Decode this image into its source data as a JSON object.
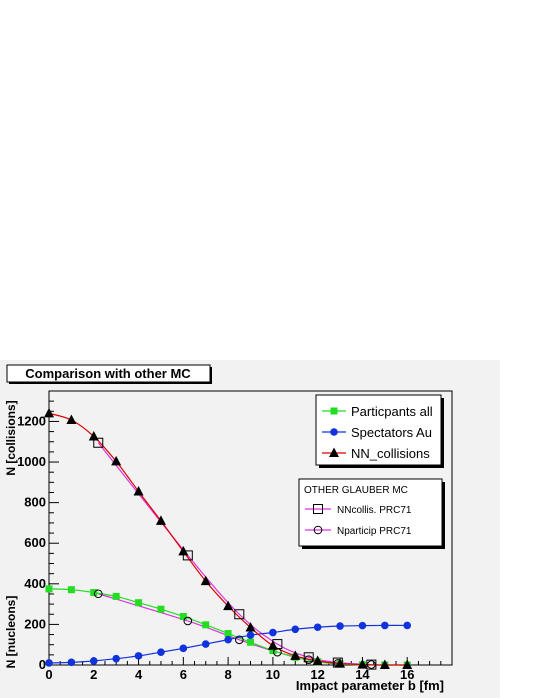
{
  "chart_data": {
    "type": "line",
    "title": "Comparison with other MC",
    "xlabel": "Impact parameter b [fm]",
    "ylabel_upper": "N [collisions]",
    "ylabel_lower": "N [nucleons]",
    "xlim": [
      0,
      18
    ],
    "ylim": [
      0,
      1350
    ],
    "x_ticks": [
      0,
      2,
      4,
      6,
      8,
      10,
      12,
      14,
      16
    ],
    "y_ticks": [
      0,
      200,
      400,
      600,
      800,
      1000,
      1200
    ],
    "grid": false,
    "legend_position": "top-right",
    "series": [
      {
        "name": "Particpants all",
        "marker": "square-filled",
        "color": "#22dd22",
        "x": [
          0,
          1,
          2,
          3,
          4,
          5,
          6,
          7,
          8,
          9,
          10,
          11,
          12,
          13,
          14,
          15,
          16
        ],
        "y": [
          375,
          371,
          357,
          338,
          307,
          275,
          239,
          198,
          155,
          112,
          71,
          38,
          16,
          5,
          1,
          0,
          0
        ]
      },
      {
        "name": "Spectators Au",
        "marker": "circle-filled",
        "color": "#1133dd",
        "x": [
          0,
          1,
          2,
          3,
          4,
          5,
          6,
          7,
          8,
          9,
          10,
          11,
          12,
          13,
          14,
          15,
          16
        ],
        "y": [
          10,
          13,
          20,
          31,
          45,
          63,
          82,
          103,
          125,
          147,
          160,
          176,
          186,
          192,
          194,
          195,
          195
        ]
      },
      {
        "name": "NN_collisions",
        "marker": "triangle-filled",
        "color": "#000000",
        "line_color": "#dd0000",
        "x": [
          0,
          1,
          2,
          3,
          4,
          5,
          6,
          7,
          8,
          9,
          10,
          11,
          12,
          13,
          14,
          15,
          16
        ],
        "y": [
          1240,
          1207,
          1126,
          1003,
          855,
          710,
          560,
          413,
          290,
          185,
          95,
          45,
          20,
          7,
          2,
          0,
          0
        ]
      }
    ],
    "other_mc": {
      "title": "OTHER GLAUBER MC",
      "series": [
        {
          "name": "NNcollis. PRC71",
          "marker": "square-open",
          "color": "#000000",
          "line_color": "#dd33dd",
          "x": [
            2.2,
            6.2,
            8.5,
            10.2,
            11.6,
            12.9,
            14.4
          ],
          "y": [
            1095,
            540,
            250,
            103,
            38,
            12,
            2
          ]
        },
        {
          "name": "Nparticip PRC71",
          "marker": "circle-open",
          "color": "#000000",
          "line_color": "#dd33dd",
          "x": [
            2.2,
            6.2,
            8.5,
            10.2,
            11.6,
            12.9,
            14.4
          ],
          "y": [
            351,
            217,
            124,
            63,
            26,
            8,
            2
          ]
        }
      ]
    }
  }
}
